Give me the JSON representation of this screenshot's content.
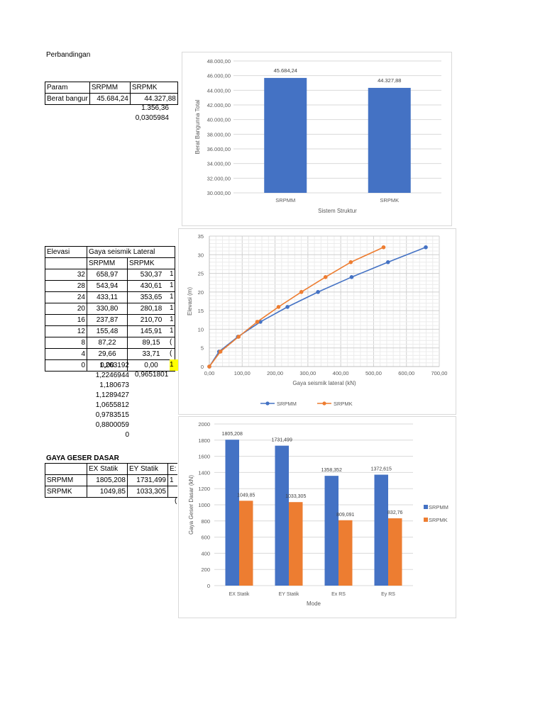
{
  "section1": {
    "title": "Perbandingan",
    "table": {
      "headers": [
        "Param",
        "SRPMM",
        "SRPMK"
      ],
      "rows": [
        [
          "Berat bangur",
          "45.684,24",
          "44.327,88"
        ]
      ]
    },
    "extra_values": [
      "1.356,36",
      "0,0305984"
    ]
  },
  "section2": {
    "table": {
      "header_top": [
        "Elevasi",
        "Gaya seismik Lateral"
      ],
      "header_sub": [
        "",
        "SRPMM",
        "SRPMK"
      ],
      "rows": [
        [
          "32",
          "658,97",
          "530,37"
        ],
        [
          "28",
          "543,94",
          "430,61"
        ],
        [
          "24",
          "433,11",
          "353,65"
        ],
        [
          "20",
          "330,80",
          "280,18"
        ],
        [
          "16",
          "237,87",
          "210,70"
        ],
        [
          "12",
          "155,48",
          "145,91"
        ],
        [
          "8",
          "87,22",
          "89,15"
        ],
        [
          "4",
          "29,66",
          "33,71"
        ],
        [
          "0",
          "0,00",
          "0,00"
        ]
      ],
      "cutoff_col": [
        "1",
        "1",
        "1",
        "1",
        "1",
        "1",
        "(",
        "(",
        "1"
      ]
    },
    "ratios": [
      "1,263192",
      "1,2246944",
      "1,180673",
      "1,1289427",
      "1,0655812",
      "0,9783515",
      "0,8800059",
      "0"
    ],
    "ratio_side": "0,9651801"
  },
  "section3": {
    "title": "GAYA GESER DASAR",
    "table": {
      "headers": [
        "",
        "EX Statik",
        "EY Statik",
        "E:"
      ],
      "rows": [
        [
          "SRPMM",
          "1805,208",
          "1731,499",
          "1"
        ],
        [
          "SRPMK",
          "1049,85",
          "1033,305",
          ""
        ]
      ]
    },
    "below_cut": "("
  },
  "colors": {
    "blue": "#4472c4",
    "orange": "#ed7d31",
    "grid": "#d9d9d9",
    "axis_text": "#595959",
    "highlight": "#ffff00"
  },
  "chart_data": [
    {
      "type": "bar",
      "title": "",
      "categories": [
        "SRPMM",
        "SRPMK"
      ],
      "values": [
        45684.24,
        44327.88
      ],
      "data_labels": [
        "45.684,24",
        "44.327,88"
      ],
      "xlabel": "Sistem Struktur",
      "ylabel": "Berat Bangunna Total",
      "ylim": [
        30000,
        48000
      ],
      "yticks": [
        "30.000,00",
        "32.000,00",
        "34.000,00",
        "36.000,00",
        "38.000,00",
        "40.000,00",
        "42.000,00",
        "44.000,00",
        "46.000,00",
        "48.000,00"
      ],
      "grid": true,
      "legend": "none"
    },
    {
      "type": "line",
      "title": "",
      "xlabel": "Gaya seismik lateral (kN)",
      "ylabel": "Elevasi (m)",
      "xlim": [
        0,
        700
      ],
      "ylim": [
        0,
        35
      ],
      "xticks": [
        "0,00",
        "100,00",
        "200,00",
        "300,00",
        "400,00",
        "500,00",
        "600,00",
        "700,00"
      ],
      "yticks": [
        "0",
        "5",
        "10",
        "15",
        "20",
        "25",
        "30",
        "35"
      ],
      "grid": true,
      "legend_position": "bottom",
      "series": [
        {
          "name": "SRPMM",
          "x": [
            0,
            29.66,
            87.22,
            155.48,
            237.87,
            330.8,
            433.11,
            543.94,
            658.97
          ],
          "y": [
            0,
            4,
            8,
            12,
            16,
            20,
            24,
            28,
            32
          ]
        },
        {
          "name": "SRPMK",
          "x": [
            0,
            33.71,
            89.15,
            145.91,
            210.7,
            280.18,
            353.65,
            430.61,
            530.37
          ],
          "y": [
            0,
            4,
            8,
            12,
            16,
            20,
            24,
            28,
            32
          ]
        }
      ],
      "legend": [
        "SRPMM",
        "SRPMK"
      ]
    },
    {
      "type": "bar",
      "title": "",
      "categories": [
        "EX Statik",
        "EY Statik",
        "Ex RS",
        "Ey RS"
      ],
      "xlabel": "Mode",
      "ylabel": "Gaya Geser Dasar (kN)",
      "ylim": [
        0,
        2000
      ],
      "yticks": [
        "0",
        "200",
        "400",
        "600",
        "800",
        "1000",
        "1200",
        "1400",
        "1600",
        "1800",
        "2000"
      ],
      "grid": true,
      "legend_position": "right",
      "series": [
        {
          "name": "SRPMM",
          "values": [
            1805.208,
            1731.499,
            1358.352,
            1372.615
          ],
          "labels": [
            "1805,208",
            "1731,499",
            "1358,352",
            "1372,615"
          ]
        },
        {
          "name": "SRPMK",
          "values": [
            1049.85,
            1033.305,
            809.091,
            832.76
          ],
          "labels": [
            "1049,85",
            "1033,305",
            "809,091",
            "832,76"
          ]
        }
      ],
      "legend": [
        "SRPMM",
        "SRPMK"
      ]
    }
  ]
}
